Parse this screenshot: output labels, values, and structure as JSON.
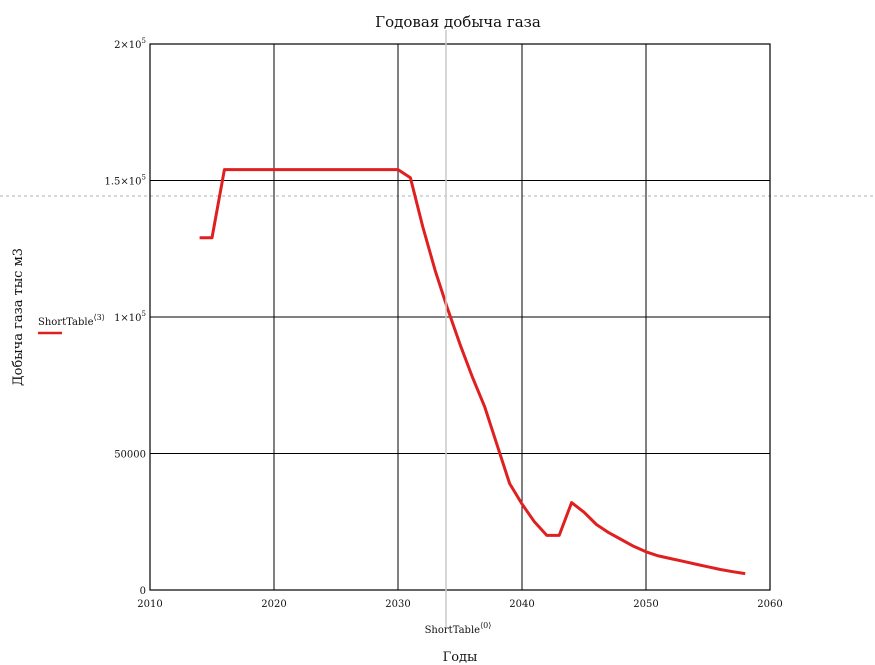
{
  "chart_data": {
    "type": "line",
    "title": "Годовая добыча газа",
    "xlabel": "Годы",
    "ylabel": "Добыча газа тыс м3",
    "x_var_label": {
      "base": "ShortTable",
      "sup": "⟨0⟩"
    },
    "xlim": [
      2010,
      2060
    ],
    "ylim": [
      0,
      200000
    ],
    "x_ticks": [
      2010,
      2020,
      2030,
      2040,
      2050,
      2060
    ],
    "x_tick_labels": [
      "2010",
      "2020",
      "2030",
      "2040",
      "2050",
      "2060"
    ],
    "y_ticks": [
      0,
      50000,
      100000,
      150000,
      200000
    ],
    "y_tick_labels": [
      {
        "base": "0",
        "sup": ""
      },
      {
        "base": "50000",
        "sup": ""
      },
      {
        "base": "1×10",
        "sup": "5"
      },
      {
        "base": "1.5×10",
        "sup": "5"
      },
      {
        "base": "2×10",
        "sup": "5"
      }
    ],
    "grid": true,
    "legend_position": "left",
    "series": [
      {
        "name": {
          "base": "ShortTable",
          "sup": "⟨3⟩"
        },
        "color": "#e02020",
        "x": [
          2014,
          2015,
          2016,
          2017,
          2018,
          2019,
          2020,
          2021,
          2022,
          2023,
          2024,
          2025,
          2026,
          2027,
          2028,
          2029,
          2030,
          2031,
          2032,
          2033,
          2034,
          2035,
          2036,
          2037,
          2038,
          2039,
          2040,
          2041,
          2042,
          2043,
          2044,
          2045,
          2046,
          2047,
          2048,
          2049,
          2050,
          2051,
          2052,
          2053,
          2054,
          2055,
          2056,
          2057,
          2058
        ],
        "y": [
          129000,
          129000,
          154000,
          154000,
          154000,
          154000,
          154000,
          154000,
          154000,
          154000,
          154000,
          154000,
          154000,
          154000,
          154000,
          154000,
          154000,
          151000,
          133000,
          117000,
          103000,
          90000,
          78000,
          67000,
          53000,
          39000,
          31500,
          25000,
          20000,
          20000,
          32000,
          28500,
          24000,
          21000,
          18500,
          16000,
          14000,
          12500,
          11500,
          10500,
          9500,
          8500,
          7500,
          6700,
          6000
        ]
      }
    ]
  }
}
